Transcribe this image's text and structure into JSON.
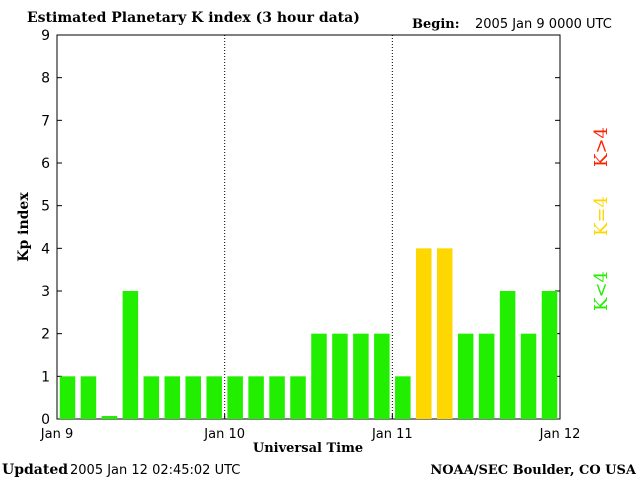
{
  "header": {
    "title": "Estimated Planetary K index (3 hour data)",
    "begin_label": "Begin:",
    "begin_value": "2005 Jan 9 0000 UTC"
  },
  "footer": {
    "updated_label": "Updated",
    "updated_value": "2005 Jan 12 02:45:02 UTC",
    "credit": "NOAA/SEC Boulder, CO USA"
  },
  "legend": {
    "high": "K>4",
    "eq": "K=4",
    "low": "K<4"
  },
  "colors": {
    "low": "#22ee00",
    "eq": "#ffd700",
    "high": "#ff2200",
    "axis": "#000000"
  },
  "chart_data": {
    "type": "bar",
    "xlabel": "Universal Time",
    "ylabel": "Kp index",
    "ylim": [
      0,
      9
    ],
    "yticks": [
      "0",
      "1",
      "2",
      "3",
      "4",
      "5",
      "6",
      "7",
      "8",
      "9"
    ],
    "xticks": [
      "Jan 9",
      "Jan 10",
      "Jan 11",
      "Jan 12"
    ],
    "grid": "vertical dotted lines at day boundaries",
    "series": [
      {
        "values": [
          1,
          1,
          0.07,
          3,
          1,
          1,
          1,
          1,
          1,
          1,
          1,
          1,
          2,
          2,
          2,
          2,
          1,
          4,
          4,
          2,
          2,
          3,
          2,
          3
        ]
      }
    ]
  }
}
